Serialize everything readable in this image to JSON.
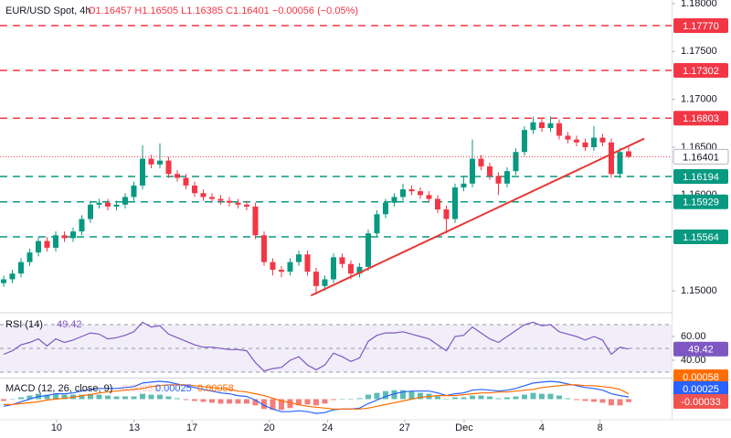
{
  "chart_data": [
    {
      "type": "candlestick",
      "title": "EUR/USD Spot, 4h",
      "ohlc_label": "O1.16457 H1.16505 L1.16385 C1.16401 −0.00056 (−0.05%)",
      "xlim": [
        -0.42,
        76.95
      ],
      "xticks": [
        {
          "value": 6.1,
          "label": "10"
        },
        {
          "value": 15.05,
          "label": "13"
        },
        {
          "value": 21.7,
          "label": "17"
        },
        {
          "value": 30.6,
          "label": "20"
        },
        {
          "value": 37.3,
          "label": "24"
        },
        {
          "value": 46.2,
          "label": "27"
        },
        {
          "value": 53.05,
          "label": "Dec"
        },
        {
          "value": 62,
          "label": "4"
        },
        {
          "value": 68.7,
          "label": "8"
        }
      ],
      "ylim": [
        1.1479,
        1.18038
      ],
      "yticks": [
        {
          "value": 1.18,
          "label": "1.18000"
        },
        {
          "value": 1.175,
          "label": "1.17500"
        },
        {
          "value": 1.17,
          "label": "1.17000"
        },
        {
          "value": 1.165,
          "label": "1.16500"
        },
        {
          "value": 1.16,
          "label": "1.16000"
        },
        {
          "value": 1.15,
          "label": "1.15000"
        }
      ],
      "up_color": "#089981",
      "down_color": "#f23645",
      "open": [
        1.1508,
        1.1512,
        1.1518,
        1.153,
        1.154,
        1.1552,
        1.1545,
        1.1558,
        1.1555,
        1.1562,
        1.1575,
        1.159,
        1.1592,
        1.1588,
        1.159,
        1.1598,
        1.161,
        1.1638,
        1.1632,
        1.1636,
        1.1622,
        1.1618,
        1.161,
        1.1602,
        1.1598,
        1.1596,
        1.1594,
        1.1592,
        1.159,
        1.1588,
        1.1558,
        1.153,
        1.1522,
        1.152,
        1.153,
        1.1538,
        1.152,
        1.1505,
        1.1512,
        1.1535,
        1.1528,
        1.1518,
        1.1525,
        1.156,
        1.158,
        1.1592,
        1.1598,
        1.1606,
        1.1604,
        1.16,
        1.1596,
        1.1585,
        1.1575,
        1.1608,
        1.1612,
        1.1638,
        1.163,
        1.162,
        1.1612,
        1.1625,
        1.1645,
        1.1668,
        1.1676,
        1.167,
        1.1675,
        1.1662,
        1.1658,
        1.1655,
        1.165,
        1.166,
        1.1655,
        1.1622,
        1.16457
      ],
      "high": [
        1.1516,
        1.1522,
        1.1534,
        1.1544,
        1.1556,
        1.1556,
        1.1562,
        1.1562,
        1.1566,
        1.1579,
        1.1594,
        1.1596,
        1.1596,
        1.1594,
        1.1602,
        1.1614,
        1.1652,
        1.1642,
        1.1654,
        1.164,
        1.1626,
        1.1622,
        1.1614,
        1.1606,
        1.1602,
        1.16,
        1.1598,
        1.1596,
        1.1594,
        1.1592,
        1.1562,
        1.1534,
        1.1526,
        1.1534,
        1.1542,
        1.1542,
        1.1524,
        1.1516,
        1.1539,
        1.1539,
        1.1532,
        1.1529,
        1.1564,
        1.1584,
        1.1596,
        1.1602,
        1.1612,
        1.161,
        1.1608,
        1.1604,
        1.16,
        1.1589,
        1.1612,
        1.162,
        1.1658,
        1.1642,
        1.1634,
        1.1624,
        1.1629,
        1.1649,
        1.1672,
        1.1682,
        1.168,
        1.1682,
        1.1679,
        1.1666,
        1.1662,
        1.1659,
        1.1672,
        1.1664,
        1.1659,
        1.1649,
        1.16505
      ],
      "low": [
        1.1504,
        1.1508,
        1.1514,
        1.1526,
        1.1536,
        1.1541,
        1.1541,
        1.1551,
        1.1551,
        1.1558,
        1.1571,
        1.1586,
        1.1584,
        1.1584,
        1.1586,
        1.1594,
        1.1606,
        1.1628,
        1.1628,
        1.1618,
        1.1614,
        1.1606,
        1.1598,
        1.1594,
        1.1592,
        1.159,
        1.1588,
        1.1586,
        1.1584,
        1.1554,
        1.1526,
        1.1516,
        1.1514,
        1.1516,
        1.1526,
        1.1516,
        1.1496,
        1.15,
        1.1508,
        1.1524,
        1.1512,
        1.1514,
        1.1521,
        1.1556,
        1.1576,
        1.1588,
        1.1594,
        1.16,
        1.1596,
        1.1592,
        1.1581,
        1.156,
        1.1571,
        1.1604,
        1.1608,
        1.1626,
        1.1616,
        1.16,
        1.1608,
        1.1621,
        1.1641,
        1.1664,
        1.1666,
        1.1666,
        1.1658,
        1.1654,
        1.1651,
        1.1646,
        1.1646,
        1.1651,
        1.1618,
        1.1618,
        1.16385
      ],
      "close": [
        1.1512,
        1.1518,
        1.153,
        1.154,
        1.1552,
        1.1545,
        1.1558,
        1.1555,
        1.1562,
        1.1575,
        1.159,
        1.1592,
        1.1588,
        1.159,
        1.1598,
        1.161,
        1.1638,
        1.1632,
        1.1636,
        1.1622,
        1.1618,
        1.161,
        1.1602,
        1.1598,
        1.1596,
        1.1594,
        1.1592,
        1.159,
        1.1588,
        1.1558,
        1.153,
        1.1522,
        1.152,
        1.153,
        1.1538,
        1.152,
        1.1505,
        1.1512,
        1.1535,
        1.1528,
        1.1518,
        1.1525,
        1.156,
        1.158,
        1.1592,
        1.1598,
        1.1606,
        1.1604,
        1.16,
        1.1596,
        1.1585,
        1.1575,
        1.1608,
        1.1612,
        1.1638,
        1.163,
        1.162,
        1.1612,
        1.1625,
        1.1645,
        1.1668,
        1.1676,
        1.167,
        1.1675,
        1.1662,
        1.1658,
        1.1655,
        1.165,
        1.166,
        1.1655,
        1.1622,
        1.1645,
        1.16401
      ],
      "levels": [
        {
          "value": 1.1777,
          "label": "1.17770",
          "color": "#f23645"
        },
        {
          "value": 1.17302,
          "label": "1.17302",
          "color": "#f23645"
        },
        {
          "value": 1.16803,
          "label": "1.16803",
          "color": "#f23645"
        },
        {
          "value": 1.16194,
          "label": "1.16194",
          "color": "#089981"
        },
        {
          "value": 1.15929,
          "label": "1.15929",
          "color": "#089981"
        },
        {
          "value": 1.15564,
          "label": "1.15564",
          "color": "#089981"
        }
      ],
      "trendline": {
        "x": [
          35.4,
          73.8
        ],
        "y": [
          1.1495,
          1.1659
        ],
        "color": "#e53935"
      }
    },
    {
      "type": "line",
      "ylim": [
        26.15,
        79.2
      ],
      "yticks": [
        {
          "value": 60,
          "label": "60.00"
        },
        {
          "value": 40,
          "label": "40.00"
        }
      ],
      "band": [
        30,
        70
      ],
      "band_color": "#7e57c2",
      "midline": 50,
      "series": [
        {
          "name": "RSI (14)",
          "color": "#7e57c2",
          "values": [
            45,
            48,
            53,
            55,
            58,
            52,
            58,
            55,
            57,
            60,
            63,
            62,
            58,
            59,
            61,
            64,
            72,
            68,
            69,
            62,
            59,
            56,
            53,
            51,
            51,
            50,
            49,
            49,
            48,
            38,
            31,
            33,
            34,
            40,
            43,
            36,
            32,
            36,
            46,
            43,
            39,
            42,
            56,
            61,
            63,
            63,
            64,
            62,
            60,
            58,
            53,
            48,
            60,
            61,
            68,
            63,
            58,
            55,
            60,
            65,
            70,
            72,
            69,
            70,
            64,
            62,
            60,
            57,
            60,
            57,
            45,
            51,
            49.42
          ]
        }
      ]
    },
    {
      "type": "line",
      "title": "MACD (12, 26, close, 9)",
      "ylim": [
        -0.0022,
        0.0022
      ],
      "series": [
        {
          "color": "#2962ff",
          "values": [
            -0.0008,
            -0.0006,
            -0.0003,
            0,
            0.0003,
            0.0004,
            0.0006,
            0.0006,
            0.0007,
            0.0009,
            0.0011,
            0.0012,
            0.0012,
            0.0012,
            0.0013,
            0.0014,
            0.0018,
            0.0019,
            0.002,
            0.0019,
            0.0017,
            0.0015,
            0.0013,
            0.0011,
            0.0009,
            0.0007,
            0.0006,
            0.0004,
            0.0003,
            -0.0001,
            -0.0007,
            -0.0011,
            -0.0014,
            -0.0014,
            -0.0013,
            -0.0014,
            -0.0016,
            -0.0015,
            -0.0012,
            -0.0011,
            -0.0011,
            -0.001,
            -0.0005,
            -0.0001,
            0.0003,
            0.0006,
            0.0008,
            0.0009,
            0.0009,
            0.0009,
            0.0007,
            0.0004,
            0.0006,
            0.0007,
            0.001,
            0.0011,
            0.001,
            0.0009,
            0.001,
            0.0012,
            0.0015,
            0.0018,
            0.0019,
            0.002,
            0.0019,
            0.0017,
            0.0015,
            0.0013,
            0.0012,
            0.001,
            0.0006,
            0.0004,
            0.00025
          ]
        },
        {
          "color": "#ff6d00",
          "values": [
            -0.0006,
            -0.0006,
            -0.0005,
            -0.0004,
            -0.0003,
            -0.0001,
            0,
            0.0001,
            0.0002,
            0.0004,
            0.0005,
            0.0007,
            0.0008,
            0.0009,
            0.001,
            0.0011,
            0.0012,
            0.0014,
            0.0015,
            0.0016,
            0.0016,
            0.0016,
            0.0015,
            0.0014,
            0.0013,
            0.0012,
            0.0011,
            0.0009,
            0.0008,
            0.0006,
            0.0004,
            0.0001,
            -0.0002,
            -0.0004,
            -0.0006,
            -0.0008,
            -0.0009,
            -0.001,
            -0.0011,
            -0.0011,
            -0.0011,
            -0.0011,
            -0.001,
            -0.0008,
            -0.0006,
            -0.0004,
            -0.0002,
            0,
            0.0002,
            0.0003,
            0.0004,
            0.0004,
            0.0004,
            0.0005,
            0.0006,
            0.0007,
            0.0007,
            0.0008,
            0.0008,
            0.0009,
            0.001,
            0.0011,
            0.0013,
            0.0014,
            0.0015,
            0.0016,
            0.0016,
            0.0015,
            0.0015,
            0.0014,
            0.0013,
            0.0011,
            0.00058
          ]
        }
      ],
      "histogram": {
        "up_color": "#26a69a",
        "down_color": "#ef5350",
        "values": [
          -0.0002,
          0,
          0.0002,
          0.0004,
          0.0006,
          0.0005,
          0.0006,
          0.0005,
          0.0005,
          0.0005,
          0.0006,
          0.0005,
          0.0004,
          0.0003,
          0.0003,
          0.0003,
          0.0006,
          0.0005,
          0.0005,
          0.0003,
          0.0001,
          -0.0001,
          -0.0002,
          -0.0003,
          -0.0004,
          -0.0005,
          -0.0005,
          -0.0005,
          -0.0005,
          -0.0007,
          -0.0011,
          -0.0012,
          -0.0012,
          -0.001,
          -0.0007,
          -0.0006,
          -0.0007,
          -0.0005,
          -0.0001,
          0,
          0,
          0.0001,
          0.0005,
          0.0007,
          0.0009,
          0.001,
          0.001,
          0.0009,
          0.0007,
          0.0006,
          0.0003,
          0,
          0.0002,
          0.0002,
          0.0004,
          0.0004,
          0.0003,
          0.0001,
          0.0002,
          0.0003,
          0.0005,
          0.0007,
          0.0006,
          0.0006,
          0.0004,
          0.0001,
          -0.0001,
          -0.0002,
          -0.0003,
          -0.0004,
          -0.0007,
          -0.0007,
          -0.00033
        ]
      }
    }
  ]
}
